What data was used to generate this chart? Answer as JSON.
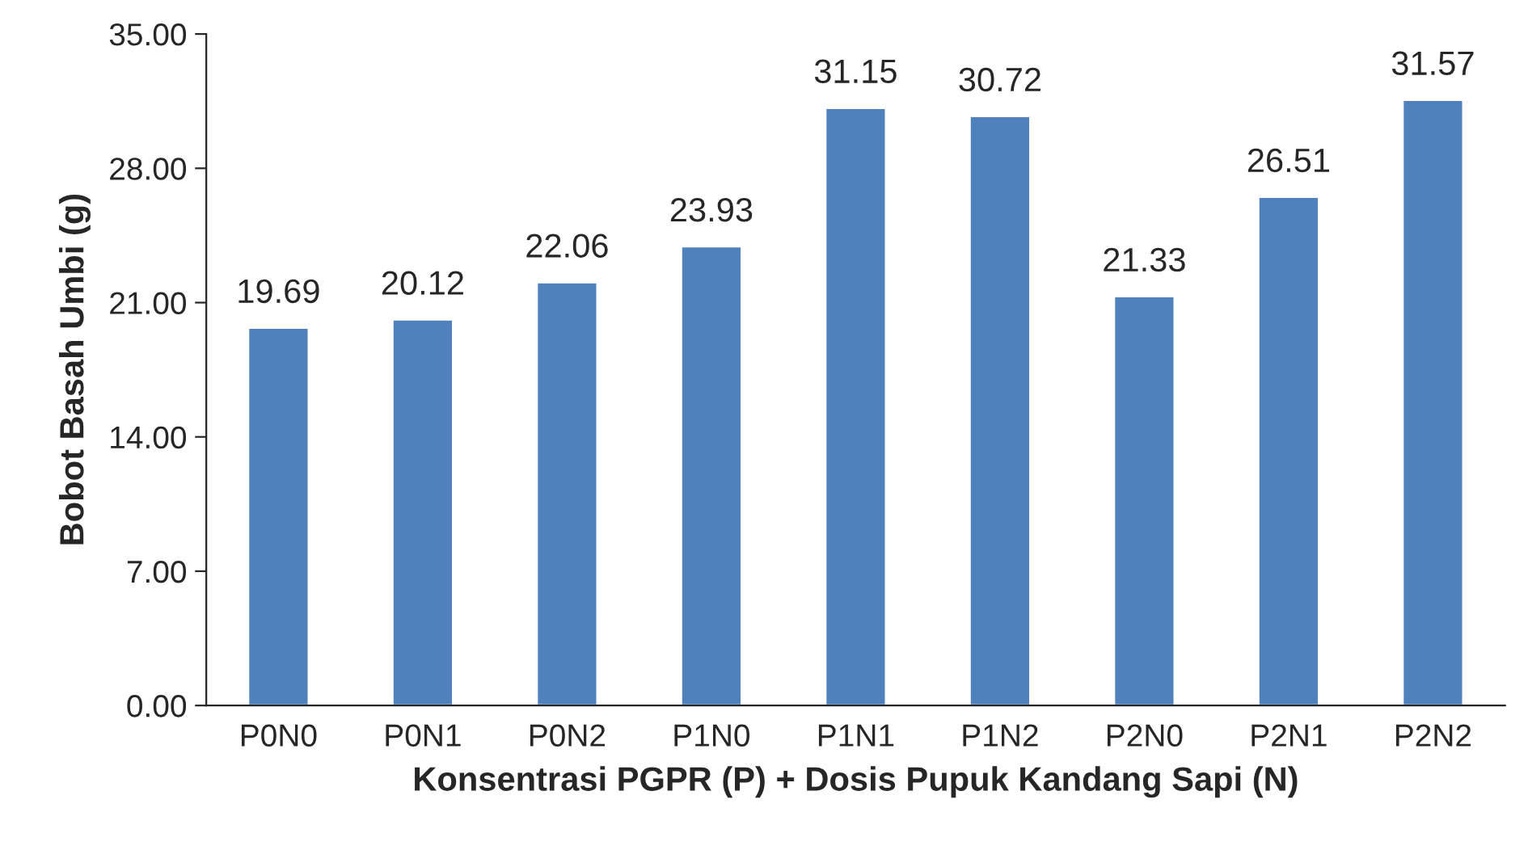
{
  "chart_data": {
    "type": "bar",
    "xlabel": "Konsentrasi PGPR (P) + Dosis Pupuk Kandang Sapi (N)",
    "ylabel": "Bobot Basah Umbi (g)",
    "categories": [
      "P0N0",
      "P0N1",
      "P0N2",
      "P1N0",
      "P1N1",
      "P1N2",
      "P2N0",
      "P2N1",
      "P2N2"
    ],
    "values": [
      19.69,
      20.12,
      22.06,
      23.93,
      31.15,
      30.72,
      21.33,
      26.51,
      31.57
    ],
    "color": "#4f81bd",
    "ylim": [
      0,
      35
    ],
    "yticks": [
      {
        "value": 0,
        "label": "0.00"
      },
      {
        "value": 7,
        "label": "7.00"
      },
      {
        "value": 14,
        "label": "14.00"
      },
      {
        "value": 21,
        "label": "21.00"
      },
      {
        "value": 28,
        "label": "28.00"
      },
      {
        "value": 35,
        "label": "35.00"
      }
    ],
    "data_labels": true,
    "grid": false,
    "legend": false
  }
}
